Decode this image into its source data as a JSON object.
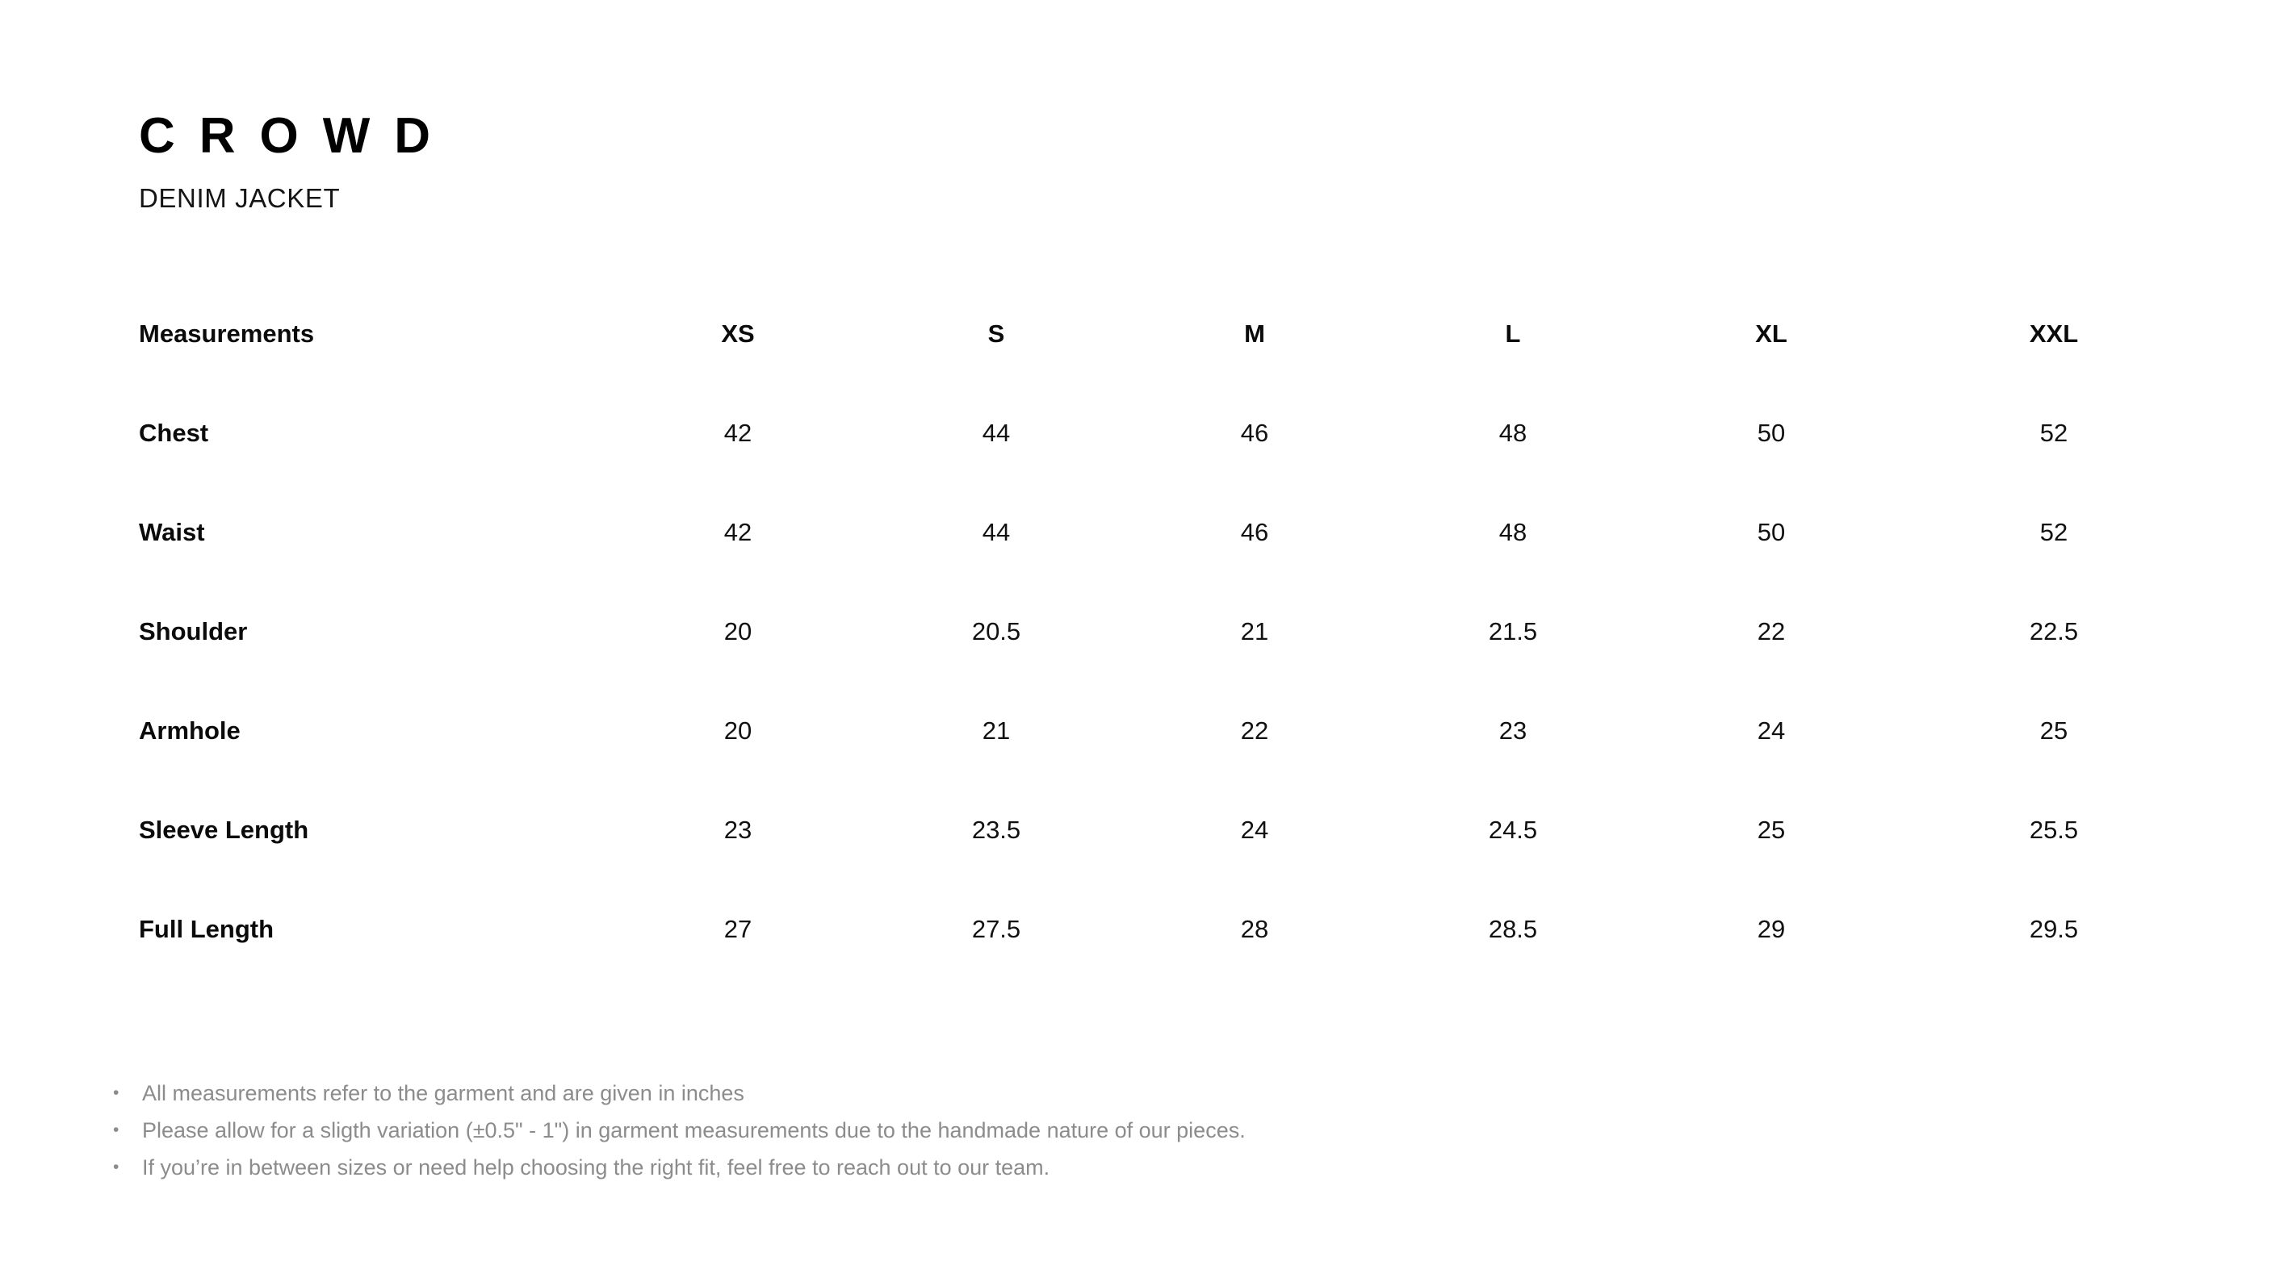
{
  "brand": {
    "logo": "CROWD",
    "product": "DENIM JACKET"
  },
  "size_chart": {
    "header": {
      "label": "Measurements",
      "sizes": [
        "XS",
        "S",
        "M",
        "L",
        "XL",
        "XXL"
      ]
    },
    "rows": [
      {
        "label": "Chest",
        "values": [
          "42",
          "44",
          "46",
          "48",
          "50",
          "52"
        ]
      },
      {
        "label": "Waist",
        "values": [
          "42",
          "44",
          "46",
          "48",
          "50",
          "52"
        ]
      },
      {
        "label": "Shoulder",
        "values": [
          "20",
          "20.5",
          "21",
          "21.5",
          "22",
          "22.5"
        ]
      },
      {
        "label": "Armhole",
        "values": [
          "20",
          "21",
          "22",
          "23",
          "24",
          "25"
        ]
      },
      {
        "label": "Sleeve Length",
        "values": [
          "23",
          "23.5",
          "24",
          "24.5",
          "25",
          "25.5"
        ]
      },
      {
        "label": "Full Length",
        "values": [
          "27",
          "27.5",
          "28",
          "28.5",
          "29",
          "29.5"
        ]
      }
    ]
  },
  "notes": [
    "All measurements refer to the garment and are given in inches",
    "Please allow for a sligth variation (±0.5\" - 1\") in garment measurements due to the handmade nature of our pieces.",
    "If you’re in between sizes or need help choosing the right fit, feel free to reach out to our team."
  ],
  "colors": {
    "background": "#ffffff",
    "text": "#111111",
    "notes_text": "#8c8c8c"
  }
}
